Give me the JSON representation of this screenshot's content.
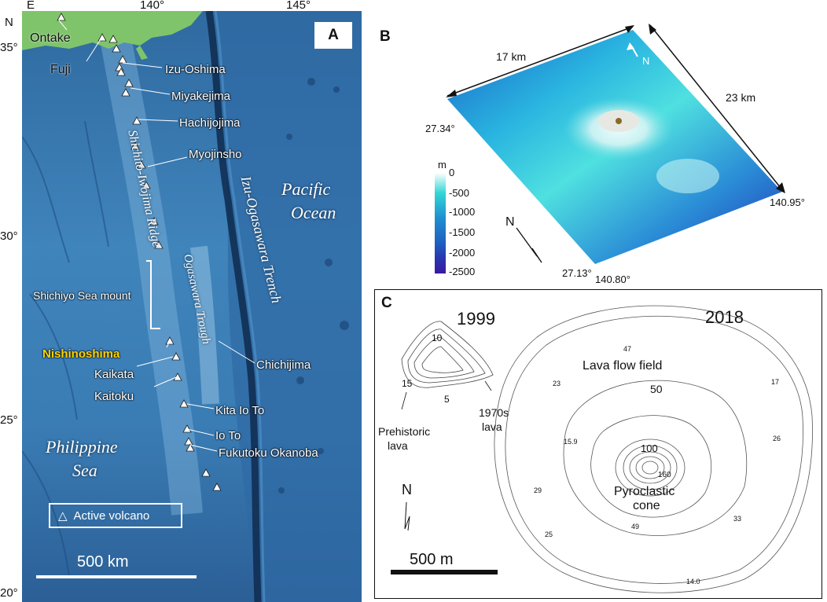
{
  "panel_a": {
    "letter": "A",
    "corner_left": "E",
    "corner_n": "N",
    "lon_ticks": [
      "140°",
      "145°"
    ],
    "lat_ticks": [
      "35°",
      "30°",
      "25°",
      "20°"
    ],
    "volcano_labels": [
      {
        "name": "Ontake"
      },
      {
        "name": "Fuji"
      },
      {
        "name": "Izu-Oshima"
      },
      {
        "name": "Miyakejima"
      },
      {
        "name": "Hachijojima"
      },
      {
        "name": "Myojinsho"
      },
      {
        "name": "Nishinoshima"
      },
      {
        "name": "Kaikata"
      },
      {
        "name": "Kaitoku"
      },
      {
        "name": "Kita Io To"
      },
      {
        "name": "Io To"
      },
      {
        "name": "Fukutoku Okanoba"
      }
    ],
    "other_labels": {
      "shichiyo": "Shichiyo Sea mount",
      "chichijima": "Chichijima",
      "ridge": "Shichito-Iwojima Ridge",
      "trench": "Izu-Ogasawara Trench",
      "trough": "Ogasawara Trough",
      "pacific_1": "Pacific",
      "pacific_2": "Ocean",
      "philippine_1": "Philippine",
      "philippine_2": "Sea"
    },
    "legend": "Active volcano",
    "scale": "500 km",
    "colors": {
      "ocean": "#3a7cb4",
      "land": "#7fc46a",
      "highlight": "#ffd400"
    }
  },
  "panel_b": {
    "letter": "B",
    "dim_top": "17 km",
    "dim_right": "23 km",
    "north": "N",
    "lat_top": "27.34°",
    "lat_bottom": "27.13°",
    "lon_left": "140.80°",
    "lon_right": "140.95°",
    "colorbar": {
      "unit": "m",
      "ticks": [
        "0",
        "-500",
        "-1000",
        "-1500",
        "-2000",
        "-2500"
      ],
      "colors": [
        "#ffffff",
        "#33d6d6",
        "#1e8fd0",
        "#1f5fc0",
        "#2a35b0",
        "#3a1aa0"
      ]
    },
    "compass": "N"
  },
  "panel_c": {
    "letter": "C",
    "year_left": "1999",
    "year_right": "2018",
    "contours_1999": [
      "10",
      "15",
      "5"
    ],
    "prehistoric_1": "Prehistoric",
    "prehistoric_2": "lava",
    "lava1970_1": "1970s",
    "lava1970_2": "lava",
    "lava_field": "Lava flow field",
    "elev_50": "50",
    "elev_100": "100",
    "elev_160": "160",
    "cone_1": "Pyroclastic",
    "cone_2": "cone",
    "compass": "N",
    "scale": "500 m",
    "spot_heights": [
      "47",
      "23",
      "17",
      "26",
      "15.9",
      "29",
      "49",
      "25",
      "33",
      "14.0"
    ]
  }
}
